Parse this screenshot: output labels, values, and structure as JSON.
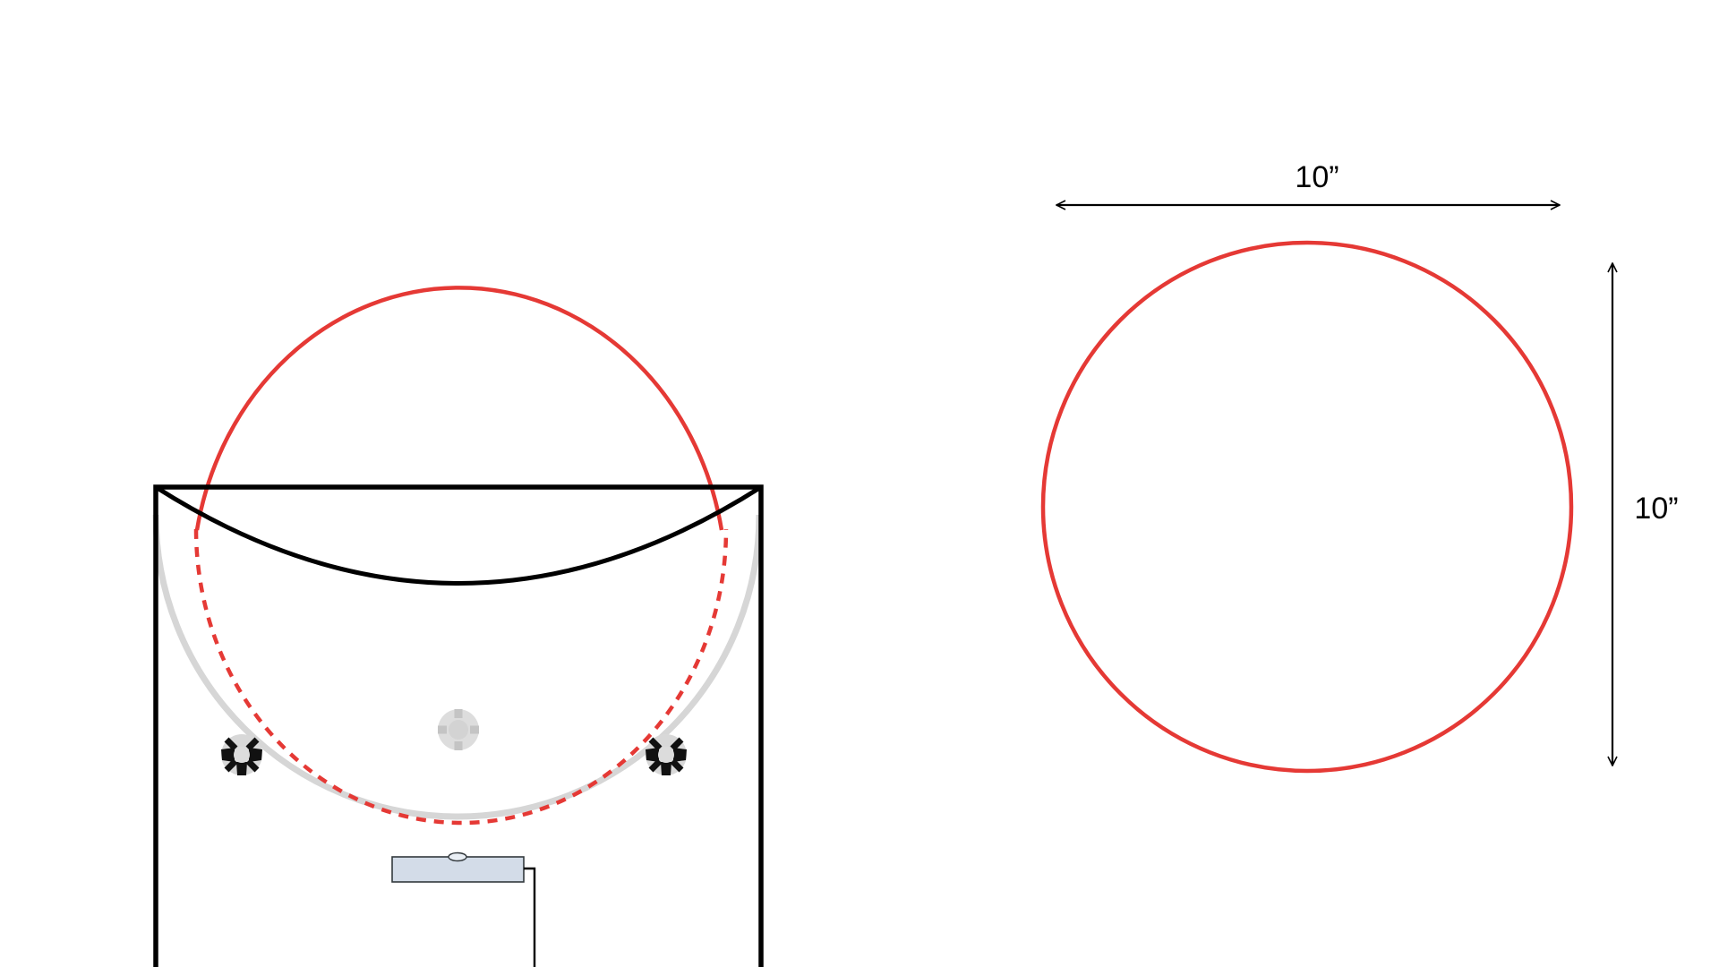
{
  "dimensions": {
    "width_label": "10”",
    "height_label": "10”"
  },
  "colors": {
    "circle": "#e53935",
    "outline": "#000000",
    "rail": "#d6d6d6",
    "bracket": "#d3dce8"
  },
  "icons": {
    "knob_left": "knob-icon",
    "knob_right": "knob-icon",
    "knob_center": "knob-icon"
  }
}
